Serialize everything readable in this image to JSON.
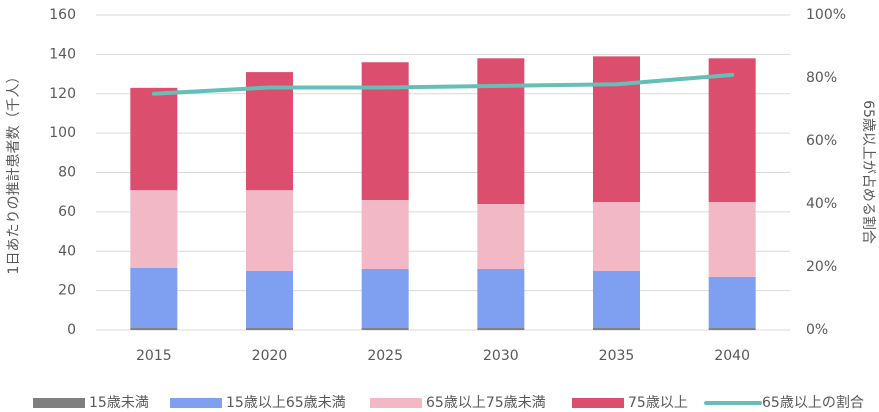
{
  "chart_data": {
    "type": "stacked-bar-line",
    "y_label": "1日あたりの推計患者数（千人）",
    "y2_label": "65歳以上が占める割合",
    "categories": [
      "2015",
      "2020",
      "2025",
      "2030",
      "2035",
      "2040"
    ],
    "series": [
      {
        "name": "15歳未満",
        "color": "#7f7f7f",
        "values": [
          1,
          1,
          1,
          1,
          1,
          1
        ]
      },
      {
        "name": "15歳以上65歳未満",
        "color": "#7f9ff0",
        "values": [
          30.5,
          29,
          30,
          30,
          29,
          26
        ]
      },
      {
        "name": "65歳以上75歳未満",
        "color": "#f2b8c6",
        "values": [
          39.5,
          41,
          35,
          33,
          35,
          38
        ]
      },
      {
        "name": "75歳以上",
        "color": "#dc4e6e",
        "values": [
          52,
          60,
          70,
          74,
          74,
          73
        ]
      },
      {
        "name": "65歳以上の割合",
        "color": "#66bfb6",
        "axis": "y2",
        "values": [
          75,
          77,
          77,
          77.5,
          78,
          81
        ]
      }
    ],
    "ylim": [
      0,
      160
    ],
    "yticks": [
      0,
      20,
      40,
      60,
      80,
      100,
      120,
      140,
      160
    ],
    "y2lim": [
      0,
      100
    ],
    "y2ticks": [
      {
        "value": 0,
        "label": "0%"
      },
      {
        "value": 20,
        "label": "20%"
      },
      {
        "value": 40,
        "label": "40%"
      },
      {
        "value": 60,
        "label": "60%"
      },
      {
        "value": 80,
        "label": "80%"
      },
      {
        "value": 100,
        "label": "100%"
      }
    ],
    "grid": true,
    "legend": "bottom"
  }
}
